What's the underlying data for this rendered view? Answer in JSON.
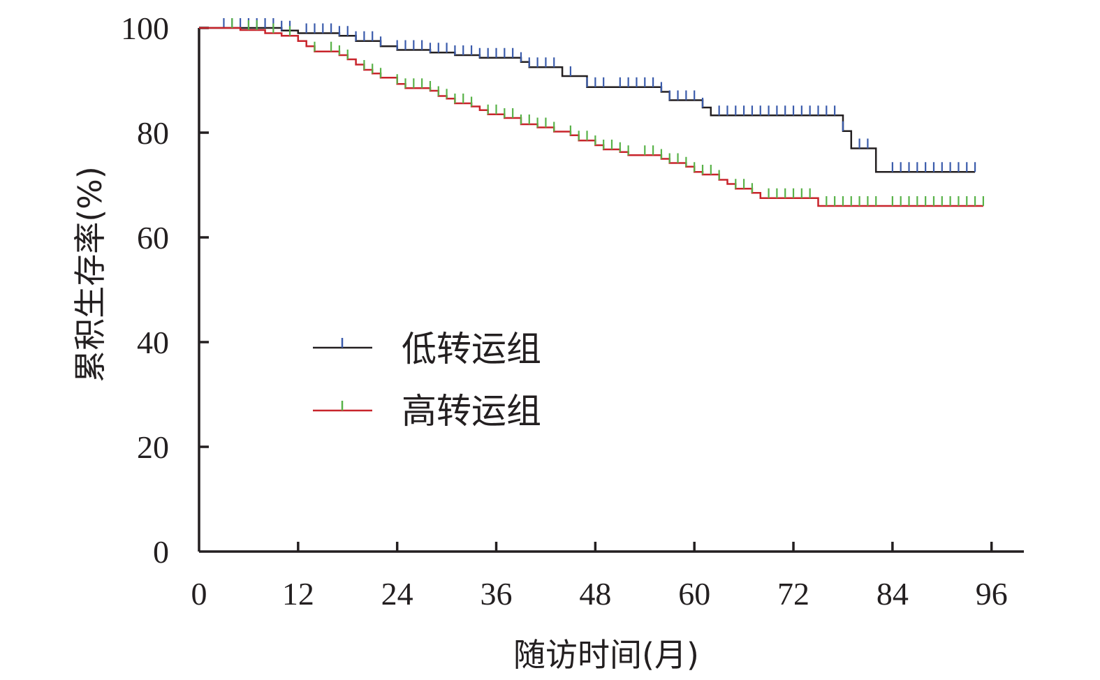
{
  "chart_data": {
    "type": "line",
    "subtype": "kaplan-meier",
    "xlabel": "随访时间(月)",
    "ylabel": "累积生存率(%)",
    "xlim": [
      0,
      100
    ],
    "ylim": [
      0,
      100
    ],
    "xticks": [
      0,
      12,
      24,
      36,
      48,
      60,
      72,
      84,
      96
    ],
    "xtick_labels": [
      "0",
      "12",
      "24",
      "36",
      "48",
      "60",
      "72",
      "84",
      "96"
    ],
    "yticks": [
      0,
      20,
      40,
      60,
      80,
      100
    ],
    "ytick_labels": [
      "0",
      "20",
      "40",
      "60",
      "80",
      "100"
    ],
    "grid": false,
    "legend_position": "center-left",
    "series": [
      {
        "name": "低转运组",
        "line_color": "#231f20",
        "censor_color": "#3a5bab",
        "steps": [
          [
            0,
            100
          ],
          [
            10,
            99.5
          ],
          [
            12,
            99
          ],
          [
            17,
            98.5
          ],
          [
            19,
            97.5
          ],
          [
            22,
            96.5
          ],
          [
            24,
            95.8
          ],
          [
            28,
            95.3
          ],
          [
            31,
            94.8
          ],
          [
            34,
            94.3
          ],
          [
            39,
            93.5
          ],
          [
            40,
            92.5
          ],
          [
            44,
            90.8
          ],
          [
            47,
            88.7
          ],
          [
            56,
            87.8
          ],
          [
            57,
            86.2
          ],
          [
            61,
            84.8
          ],
          [
            62,
            83.3
          ],
          [
            78,
            80.3
          ],
          [
            79,
            77
          ],
          [
            82,
            72.5
          ],
          [
            94,
            72.5
          ]
        ],
        "censored": [
          3,
          4,
          5,
          6,
          7,
          8,
          9,
          10,
          11,
          13,
          14,
          15,
          16,
          17,
          18,
          19,
          20,
          21,
          22,
          24,
          25,
          26,
          27,
          28,
          29,
          30,
          31,
          32,
          33,
          34,
          35,
          36,
          37,
          38,
          39,
          40,
          41,
          42,
          43,
          45,
          47,
          48,
          49,
          51,
          52,
          53,
          54,
          55,
          56,
          57,
          58,
          59,
          60,
          61,
          63,
          64,
          65,
          66,
          67,
          68,
          69,
          70,
          71,
          72,
          73,
          74,
          75,
          76,
          77,
          78,
          80,
          81,
          84,
          85,
          86,
          87,
          88,
          89,
          90,
          91,
          92,
          93,
          94
        ]
      },
      {
        "name": "高转运组",
        "line_color": "#c8242b",
        "censor_color": "#58b248",
        "steps": [
          [
            0,
            100
          ],
          [
            5,
            99.6
          ],
          [
            8,
            99
          ],
          [
            10,
            98.5
          ],
          [
            12,
            97.5
          ],
          [
            13,
            96.5
          ],
          [
            14,
            95.5
          ],
          [
            17,
            94.8
          ],
          [
            18,
            94
          ],
          [
            19,
            93
          ],
          [
            20,
            92
          ],
          [
            21,
            91.3
          ],
          [
            22,
            90.5
          ],
          [
            24,
            89.3
          ],
          [
            25,
            88.5
          ],
          [
            28,
            88
          ],
          [
            29,
            87
          ],
          [
            30,
            86.5
          ],
          [
            31,
            85.6
          ],
          [
            33,
            85
          ],
          [
            34,
            84.3
          ],
          [
            35,
            83.5
          ],
          [
            37,
            82.8
          ],
          [
            39,
            81.6
          ],
          [
            41,
            81
          ],
          [
            43,
            80.2
          ],
          [
            45,
            79.5
          ],
          [
            46,
            78.5
          ],
          [
            48,
            77.6
          ],
          [
            49,
            76.8
          ],
          [
            51,
            76.3
          ],
          [
            52,
            75.7
          ],
          [
            56,
            75
          ],
          [
            57,
            74.2
          ],
          [
            59,
            73.5
          ],
          [
            60,
            72.5
          ],
          [
            61,
            72
          ],
          [
            63,
            71
          ],
          [
            64,
            70.2
          ],
          [
            65,
            69.3
          ],
          [
            67,
            68.5
          ],
          [
            68,
            67.5
          ],
          [
            75,
            66
          ],
          [
            95,
            66
          ]
        ],
        "censored": [
          4,
          6,
          7,
          9,
          11,
          14,
          16,
          17,
          18,
          20,
          21,
          22,
          24,
          25,
          26,
          27,
          28,
          29,
          30,
          31,
          32,
          33,
          35,
          36,
          37,
          38,
          39,
          40,
          41,
          42,
          43,
          45,
          46,
          47,
          48,
          49,
          50,
          51,
          52,
          54,
          55,
          56,
          57,
          58,
          59,
          60,
          61,
          62,
          63,
          65,
          66,
          67,
          69,
          70,
          71,
          72,
          73,
          74,
          76,
          77,
          78,
          79,
          80,
          81,
          82,
          84,
          85,
          86,
          87,
          88,
          89,
          90,
          91,
          92,
          93,
          94,
          95
        ]
      }
    ]
  }
}
